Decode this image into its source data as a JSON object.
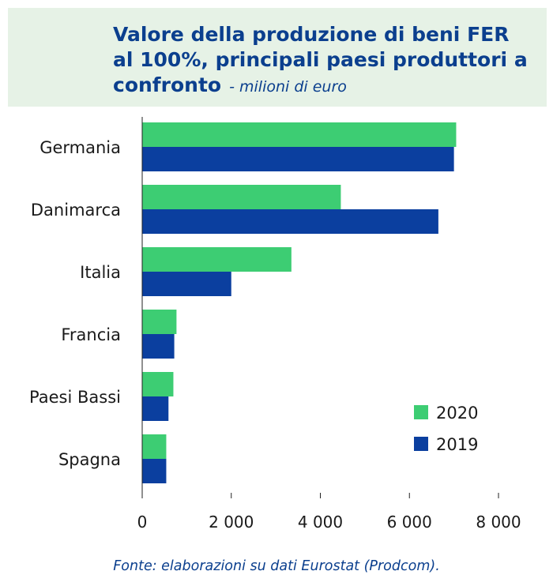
{
  "title": "Valore della produzione di beni FER al 100%, principali paesi produttori a confronto",
  "subtitle": "- milioni di euro",
  "source": "Fonte: elaborazioni su dati Eurostat (Prodcom).",
  "colors": {
    "2020": "#3dcd73",
    "2019": "#0b3f9f",
    "title": "#0b3f8e",
    "title_bg": "#e6f2e6"
  },
  "chart_data": {
    "type": "bar",
    "orientation": "horizontal",
    "categories": [
      "Germania",
      "Danimarca",
      "Italia",
      "Francia",
      "Paesi Bassi",
      "Spagna"
    ],
    "series": [
      {
        "name": "2020",
        "values": [
          7050,
          4460,
          3350,
          770,
          700,
          540
        ]
      },
      {
        "name": "2019",
        "values": [
          7000,
          6650,
          2000,
          720,
          590,
          540
        ]
      }
    ],
    "xlim": [
      0,
      8000
    ],
    "xticks": [
      0,
      2000,
      4000,
      6000,
      8000
    ],
    "xtick_labels": [
      "0",
      "2 000",
      "4 000",
      "6 000",
      "8 000"
    ],
    "legend_position": "bottom-right",
    "grid": false
  }
}
